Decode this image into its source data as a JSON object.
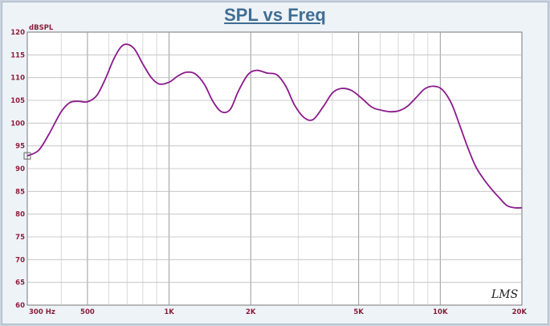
{
  "chart_data": {
    "type": "line",
    "title": "SPL vs Freq",
    "ylabel": "dBSPL",
    "xlabel": "",
    "x_scale": "log",
    "xlim": [
      300,
      20000
    ],
    "ylim": [
      60,
      120
    ],
    "y_ticks": [
      60,
      65,
      70,
      75,
      80,
      85,
      90,
      95,
      100,
      105,
      110,
      115,
      120
    ],
    "x_ticks": [
      {
        "value": 300,
        "label": "300  Hz"
      },
      {
        "value": 500,
        "label": "500"
      },
      {
        "value": 1000,
        "label": "1K"
      },
      {
        "value": 2000,
        "label": "2K"
      },
      {
        "value": 5000,
        "label": "5K"
      },
      {
        "value": 10000,
        "label": "10K"
      },
      {
        "value": 20000,
        "label": "20K"
      }
    ],
    "grid": true,
    "line_color": "#8b1a8b",
    "logo_text": "LMS",
    "series": [
      {
        "x": [
          300,
          330,
          360,
          400,
          430,
          460,
          500,
          540,
          580,
          630,
          680,
          740,
          800,
          860,
          920,
          1000,
          1080,
          1160,
          1250,
          1350,
          1450,
          1560,
          1680,
          1800,
          1950,
          2100,
          2300,
          2500,
          2700,
          2900,
          3150,
          3400,
          3700,
          4000,
          4300,
          4700,
          5100,
          5600,
          6100,
          6600,
          7100,
          7600,
          8200,
          8800,
          9500,
          10200,
          11000,
          11800,
          12600,
          13500,
          14500,
          15500,
          16500,
          17600,
          18800,
          20000
        ],
        "y": [
          92.8,
          94,
          97.5,
          102.5,
          104.5,
          104.8,
          104.7,
          106,
          109.5,
          114.5,
          117.2,
          116.5,
          113,
          110,
          108.6,
          109,
          110.4,
          111.2,
          110.8,
          108.5,
          104.8,
          102.5,
          103,
          107,
          110.6,
          111.6,
          111,
          110.6,
          108,
          104,
          101.2,
          100.8,
          103.6,
          106.6,
          107.6,
          107.2,
          105.6,
          103.5,
          102.8,
          102.5,
          102.8,
          103.8,
          105.8,
          107.6,
          108.1,
          107.3,
          104.3,
          99.5,
          94.8,
          90.5,
          87.6,
          85.4,
          83.6,
          81.9,
          81.4,
          81.4
        ]
      }
    ]
  }
}
